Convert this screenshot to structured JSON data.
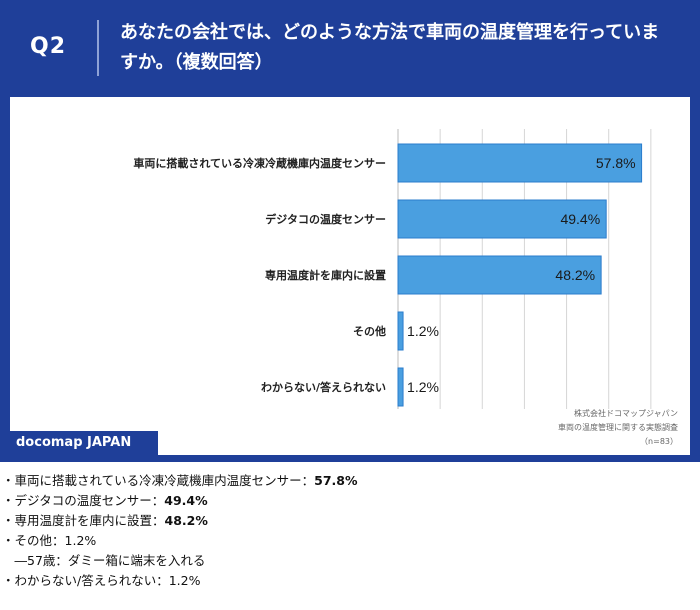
{
  "header": {
    "q_label": "Q2",
    "question": "あなたの会社では、どのような方法で車両の温度管理を行っていますか。（複数回答）"
  },
  "chart_data": {
    "type": "bar",
    "orientation": "horizontal",
    "categories": [
      "車両に搭載されている冷凍冷蔵機庫内温度センサー",
      "デジタコの温度センサー",
      "専用温度計を庫内に設置",
      "その他",
      "わからない/答えられない"
    ],
    "values": [
      57.8,
      49.4,
      48.2,
      1.2,
      1.2
    ],
    "value_labels": [
      "57.8%",
      "49.4%",
      "48.2%",
      "1.2%",
      "1.2%"
    ],
    "xlim": [
      0,
      70
    ],
    "grid": true,
    "legend": "none"
  },
  "brand": "docomap JAPAN",
  "source": {
    "line1": "株式会社ドコマップジャパン",
    "line2": "車両の温度管理に関する実態調査",
    "line3": "（n=83）"
  },
  "summary": {
    "item1_label": "・車両に搭載されている冷凍冷蔵機庫内温度センサー：",
    "item1_value": "57.8%",
    "item2_label": "・デジタコの温度センサー：",
    "item2_value": "49.4%",
    "item3_label": "・専用温度計を庫内に設置：",
    "item3_value": "48.2%",
    "item4_label": "・その他：",
    "item4_value": "1.2%",
    "item4_sub": "　―57歳：ダミー箱に端末を入れる",
    "item5_label": "・わからない/答えられない：",
    "item5_value": "1.2%"
  },
  "colors": {
    "header_bg": "#1f3f99",
    "bar_fill": "#4a9fe0",
    "bar_stroke": "#2b7ccc",
    "grid": "#d6d6d6"
  }
}
